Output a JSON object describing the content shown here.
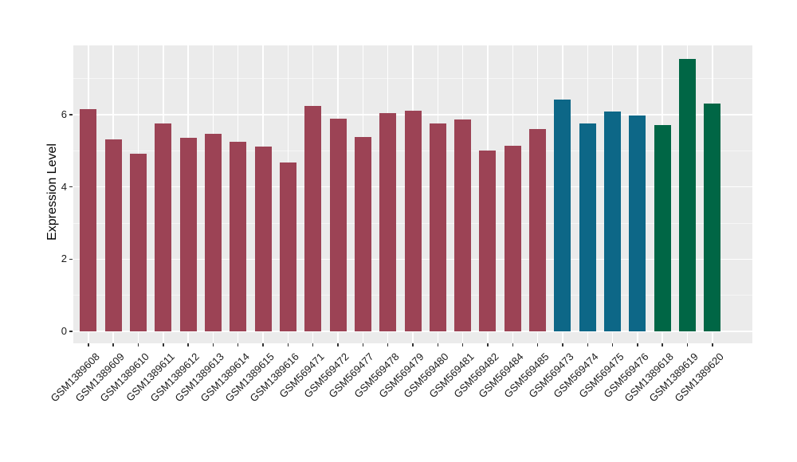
{
  "chart_data": {
    "type": "bar",
    "title": "",
    "xlabel": "",
    "ylabel": "Expression Level",
    "categories": [
      "GSM1389608",
      "GSM1389609",
      "GSM1389610",
      "GSM1389611",
      "GSM1389612",
      "GSM1389613",
      "GSM1389614",
      "GSM1389615",
      "GSM1389616",
      "GSM569471",
      "GSM569472",
      "GSM569477",
      "GSM569478",
      "GSM569479",
      "GSM569480",
      "GSM569481",
      "GSM569482",
      "GSM569484",
      "GSM569485",
      "GSM569473",
      "GSM569474",
      "GSM569475",
      "GSM569476",
      "GSM1389618",
      "GSM1389619",
      "GSM1389620"
    ],
    "values": [
      6.15,
      5.32,
      4.93,
      5.75,
      5.35,
      5.46,
      5.26,
      5.12,
      4.67,
      6.25,
      5.9,
      5.38,
      6.05,
      6.12,
      5.76,
      5.86,
      5.0,
      5.13,
      5.6,
      6.43,
      5.75,
      6.08,
      5.98,
      5.72,
      7.54,
      6.3
    ],
    "bar_group_index": [
      0,
      0,
      0,
      0,
      0,
      0,
      0,
      0,
      0,
      0,
      0,
      0,
      0,
      0,
      0,
      0,
      0,
      0,
      0,
      1,
      1,
      1,
      1,
      2,
      2,
      2
    ],
    "palette": [
      "#9C4355",
      "#0D6787",
      "#006645"
    ],
    "ylim": [
      -0.33,
      7.92
    ],
    "yticks": [
      0,
      2,
      4,
      6
    ],
    "yticks_minor": [
      1,
      3,
      5,
      7
    ],
    "grid": "on",
    "legend_position": "none",
    "panel_background": "#EBEBEB",
    "grid_major_color": "#FFFFFF",
    "grid_minor_color": "#FFFFFF",
    "axis_text_color": "#1A1A1A",
    "tick_color": "#333333",
    "figure_background": "#FFFFFF"
  }
}
